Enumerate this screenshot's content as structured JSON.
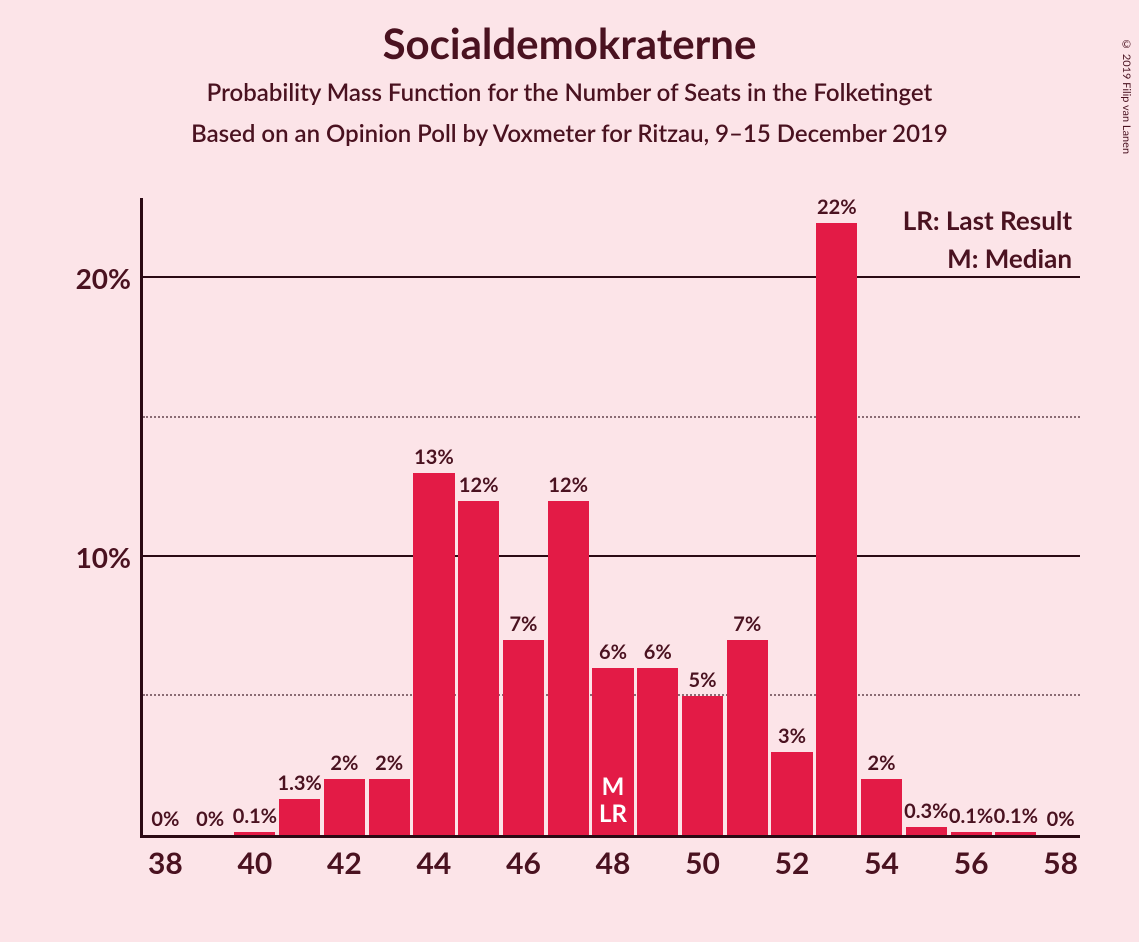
{
  "copyright": "© 2019 Filip van Lanen",
  "title": "Socialdemokraterne",
  "subtitle": "Probability Mass Function for the Number of Seats in the Folketinget",
  "subtitle2": "Based on an Opinion Poll by Voxmeter for Ritzau, 9–15 December 2019",
  "legend": {
    "lr": "LR: Last Result",
    "m": "M: Median"
  },
  "chart": {
    "type": "bar",
    "background_color": "#fce4e8",
    "bar_color": "#e31b46",
    "axis_color": "#2b0a14",
    "text_color": "#4a1220",
    "marker_text_color": "#ffffff",
    "title_fontsize": 42,
    "subtitle_fontsize": 24,
    "label_fontsize": 20,
    "tick_fontsize": 30,
    "legend_fontsize": 26,
    "xlim": [
      38,
      58
    ],
    "ylim": [
      0,
      23
    ],
    "y_major_ticks": [
      10,
      20
    ],
    "y_minor_ticks": [
      5,
      15
    ],
    "x_ticks": [
      38,
      40,
      42,
      44,
      46,
      48,
      50,
      52,
      54,
      56,
      58
    ],
    "bar_width_ratio": 0.92,
    "bars": [
      {
        "x": 38,
        "value": 0,
        "label": "0%"
      },
      {
        "x": 39,
        "value": 0,
        "label": "0%"
      },
      {
        "x": 40,
        "value": 0.1,
        "label": "0.1%"
      },
      {
        "x": 41,
        "value": 1.3,
        "label": "1.3%"
      },
      {
        "x": 42,
        "value": 2,
        "label": "2%"
      },
      {
        "x": 43,
        "value": 2,
        "label": "2%"
      },
      {
        "x": 44,
        "value": 13,
        "label": "13%"
      },
      {
        "x": 45,
        "value": 12,
        "label": "12%"
      },
      {
        "x": 46,
        "value": 7,
        "label": "7%"
      },
      {
        "x": 47,
        "value": 12,
        "label": "12%"
      },
      {
        "x": 48,
        "value": 6,
        "label": "6%",
        "markers": [
          "M",
          "LR"
        ]
      },
      {
        "x": 49,
        "value": 6,
        "label": "6%"
      },
      {
        "x": 50,
        "value": 5,
        "label": "5%"
      },
      {
        "x": 51,
        "value": 7,
        "label": "7%"
      },
      {
        "x": 52,
        "value": 3,
        "label": "3%"
      },
      {
        "x": 53,
        "value": 22,
        "label": "22%"
      },
      {
        "x": 54,
        "value": 2,
        "label": "2%"
      },
      {
        "x": 55,
        "value": 0.3,
        "label": "0.3%"
      },
      {
        "x": 56,
        "value": 0.1,
        "label": "0.1%"
      },
      {
        "x": 57,
        "value": 0.1,
        "label": "0.1%"
      },
      {
        "x": 58,
        "value": 0,
        "label": "0%"
      }
    ]
  }
}
